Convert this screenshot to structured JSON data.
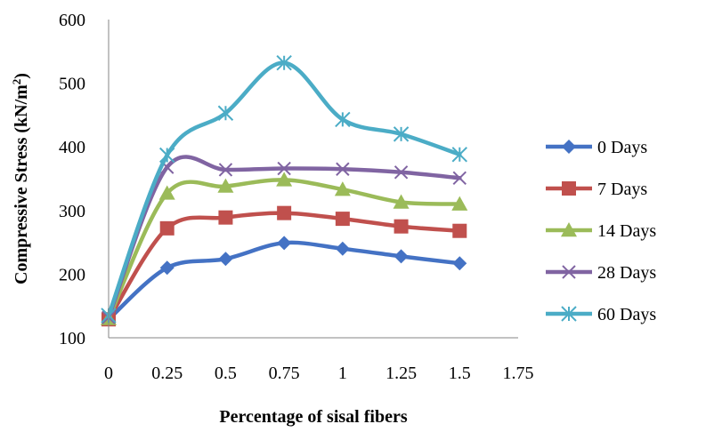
{
  "chart_data": {
    "type": "line",
    "xlabel": "Percentage of sisal fibers",
    "ylabel": "Compressive Stress (kN/m²)",
    "ylabel_parts": {
      "before": "Compressive Stress (kN/m",
      "sup": "2",
      "after": ")"
    },
    "xlim": [
      0,
      1.75
    ],
    "ylim": [
      100,
      600
    ],
    "x_ticks": [
      "0",
      "0.25",
      "0.5",
      "0.75",
      "1",
      "1.25",
      "1.5",
      "1.75"
    ],
    "y_ticks": [
      "100",
      "200",
      "300",
      "400",
      "500",
      "600"
    ],
    "grid": false,
    "smooth": true,
    "legend_position": "right",
    "x": [
      0,
      0.25,
      0.5,
      0.75,
      1,
      1.25,
      1.5
    ],
    "series": [
      {
        "name": "0 Days",
        "color": "#4472C4",
        "marker": "diamond",
        "values": [
          129,
          210,
          224,
          249,
          240,
          228,
          217
        ]
      },
      {
        "name": "7 Days",
        "color": "#C0504D",
        "marker": "square",
        "values": [
          129,
          272,
          289,
          296,
          287,
          275,
          268
        ]
      },
      {
        "name": "14 Days",
        "color": "#9BBB59",
        "marker": "triangle",
        "values": [
          130,
          327,
          338,
          348,
          333,
          313,
          310
        ]
      },
      {
        "name": "28 Days",
        "color": "#8064A2",
        "marker": "x",
        "values": [
          132,
          368,
          364,
          366,
          365,
          360,
          351
        ]
      },
      {
        "name": "60 Days",
        "color": "#4BACC6",
        "marker": "star",
        "values": [
          135,
          387,
          453,
          532,
          443,
          420,
          388
        ]
      }
    ]
  }
}
